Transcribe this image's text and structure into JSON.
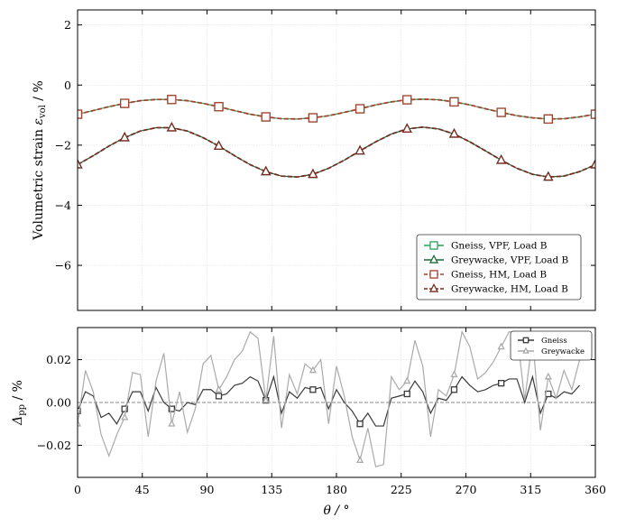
{
  "chart_data": [
    {
      "type": "line",
      "ylabel": {
        "text": "Volumetric strain ",
        "symbol": "ε",
        "sub": "vol",
        "unit": " / %"
      },
      "x": [
        0,
        10.91,
        21.82,
        32.73,
        43.64,
        54.55,
        65.45,
        76.36,
        87.27,
        98.18,
        109.09,
        120,
        130.91,
        141.82,
        152.73,
        163.64,
        174.55,
        185.45,
        196.36,
        207.27,
        218.18,
        229.09,
        240,
        250.91,
        261.82,
        272.73,
        283.64,
        294.55,
        305.45,
        316.36,
        327.27,
        338.18,
        349.09,
        360
      ],
      "xlim": [
        0,
        360
      ],
      "xticks": [
        0,
        45,
        90,
        135,
        180,
        225,
        270,
        315,
        360
      ],
      "show_xtick_labels": false,
      "ylim": [
        -7.5,
        2.5
      ],
      "yticks": [
        {
          "value": -6,
          "label": "−6"
        },
        {
          "value": -4,
          "label": "−4"
        },
        {
          "value": -2,
          "label": "−2"
        },
        0,
        2
      ],
      "grid": true,
      "legend": "lower right",
      "marker_every": 3,
      "series": [
        {
          "name": "Gneiss, VPF, Load B",
          "color": "#2ca05a",
          "marker": "square",
          "linestyle": "solid",
          "values": [
            -0.97,
            -0.85,
            -0.72,
            -0.61,
            -0.52,
            -0.48,
            -0.48,
            -0.52,
            -0.61,
            -0.72,
            -0.85,
            -0.97,
            -1.06,
            -1.12,
            -1.13,
            -1.09,
            -1.02,
            -0.91,
            -0.79,
            -0.66,
            -0.56,
            -0.49,
            -0.47,
            -0.49,
            -0.56,
            -0.66,
            -0.79,
            -0.91,
            -1.02,
            -1.09,
            -1.13,
            -1.12,
            -1.06,
            -0.97
          ]
        },
        {
          "name": "Greywacke, VPF, Load B",
          "color": "#1b6b3a",
          "marker": "triangle",
          "linestyle": "solid",
          "values": [
            -2.65,
            -2.35,
            -2.03,
            -1.75,
            -1.53,
            -1.42,
            -1.42,
            -1.53,
            -1.75,
            -2.03,
            -2.35,
            -2.65,
            -2.88,
            -3.03,
            -3.06,
            -2.97,
            -2.77,
            -2.5,
            -2.19,
            -1.89,
            -1.63,
            -1.46,
            -1.4,
            -1.46,
            -1.63,
            -1.89,
            -2.19,
            -2.5,
            -2.77,
            -2.97,
            -3.06,
            -3.03,
            -2.88,
            -2.65
          ]
        },
        {
          "name": "Gneiss, HM, Load B",
          "color": "#a5402f",
          "marker": "square",
          "linestyle": "dashed",
          "values": [
            -0.97,
            -0.85,
            -0.72,
            -0.61,
            -0.52,
            -0.48,
            -0.48,
            -0.52,
            -0.61,
            -0.72,
            -0.85,
            -0.97,
            -1.06,
            -1.12,
            -1.13,
            -1.09,
            -1.02,
            -0.91,
            -0.79,
            -0.66,
            -0.56,
            -0.49,
            -0.47,
            -0.49,
            -0.56,
            -0.66,
            -0.79,
            -0.91,
            -1.02,
            -1.09,
            -1.13,
            -1.12,
            -1.06,
            -0.97
          ]
        },
        {
          "name": "Greywacke, HM, Load B",
          "color": "#7a2a1f",
          "marker": "triangle",
          "linestyle": "dashed",
          "values": [
            -2.65,
            -2.35,
            -2.03,
            -1.75,
            -1.53,
            -1.42,
            -1.42,
            -1.53,
            -1.75,
            -2.03,
            -2.35,
            -2.65,
            -2.88,
            -3.03,
            -3.06,
            -2.97,
            -2.77,
            -2.5,
            -2.19,
            -1.89,
            -1.63,
            -1.46,
            -1.4,
            -1.46,
            -1.63,
            -1.89,
            -2.19,
            -2.5,
            -2.77,
            -2.97,
            -3.06,
            -3.03,
            -2.88,
            -2.65
          ]
        }
      ]
    },
    {
      "type": "line",
      "ylabel": {
        "text": "",
        "symbol": "Δ",
        "sub": "pp",
        "unit": " / %"
      },
      "xlabel": "θ / °",
      "x": [
        0,
        5.45,
        10.91,
        16.36,
        21.82,
        27.27,
        32.73,
        38.18,
        43.64,
        49.09,
        54.55,
        60,
        65.45,
        70.91,
        76.36,
        81.82,
        87.27,
        92.73,
        98.18,
        103.64,
        109.09,
        114.55,
        120,
        125.45,
        130.91,
        136.36,
        141.82,
        147.27,
        152.73,
        158.18,
        163.64,
        169.09,
        174.55,
        180,
        185.45,
        190.91,
        196.36,
        201.82,
        207.27,
        212.73,
        218.18,
        223.64,
        229.09,
        234.55,
        240,
        245.45,
        250.91,
        256.36,
        261.82,
        267.27,
        272.73,
        278.18,
        283.64,
        289.09,
        294.55,
        300,
        305.45,
        310.91,
        316.36,
        321.82,
        327.27,
        332.73,
        338.18,
        343.64,
        349.09
      ],
      "xlim": [
        0,
        360
      ],
      "xticks": [
        0,
        45,
        90,
        135,
        180,
        225,
        270,
        315,
        360
      ],
      "show_xtick_labels": true,
      "ylim": [
        -0.035,
        0.035
      ],
      "yticks": [
        {
          "value": -0.02,
          "label": "−0.02"
        },
        {
          "value": 0,
          "label": "0.00"
        },
        {
          "value": 0.02,
          "label": "0.02"
        }
      ],
      "hline": 0,
      "grid": true,
      "legend": "upper right",
      "marker_every": 6,
      "series": [
        {
          "name": "Gneiss",
          "color": "#3a3a3a",
          "marker": "square",
          "linestyle": "solid",
          "values": [
            -0.004,
            0.005,
            0.003,
            -0.007,
            -0.005,
            -0.01,
            -0.003,
            0.005,
            0.005,
            -0.004,
            0.007,
            0,
            -0.003,
            -0.004,
            0,
            -0.001,
            0.006,
            0.006,
            0.003,
            0.004,
            0.008,
            0.009,
            0.012,
            0.01,
            0.001,
            0.012,
            -0.005,
            0.005,
            0.002,
            0.007,
            0.006,
            0.007,
            -0.003,
            0.006,
            0,
            -0.004,
            -0.01,
            -0.005,
            -0.011,
            -0.011,
            0.002,
            0.003,
            0.004,
            0.01,
            0.005,
            -0.005,
            0.002,
            0.001,
            0.006,
            0.012,
            0.008,
            0.005,
            0.006,
            0.008,
            0.009,
            0.011,
            0.011,
            0,
            0.012,
            -0.005,
            0.004,
            0.002,
            0.005,
            0.004,
            0.008
          ]
        },
        {
          "name": "Greywacke",
          "color": "#aaaaaa",
          "marker": "triangle",
          "linestyle": "solid",
          "values": [
            -0.01,
            0.015,
            0.005,
            -0.015,
            -0.025,
            -0.015,
            -0.007,
            0.014,
            0.013,
            -0.016,
            0.01,
            0.023,
            -0.01,
            0.005,
            -0.014,
            -0.003,
            0.018,
            0.022,
            0.006,
            0.012,
            0.02,
            0.024,
            0.033,
            0.03,
            0.001,
            0.031,
            -0.012,
            0.013,
            0.004,
            0.018,
            0.015,
            0.02,
            -0.01,
            0.017,
            0.003,
            -0.016,
            -0.027,
            -0.012,
            -0.03,
            -0.029,
            0.012,
            0.006,
            0.01,
            0.029,
            0.017,
            -0.016,
            0.006,
            0.003,
            0.013,
            0.033,
            0.026,
            0.011,
            0.014,
            0.019,
            0.026,
            0.033,
            0.033,
            0.001,
            0.03,
            -0.013,
            0.012,
            0.002,
            0.015,
            0.006,
            0.02
          ]
        }
      ]
    }
  ]
}
